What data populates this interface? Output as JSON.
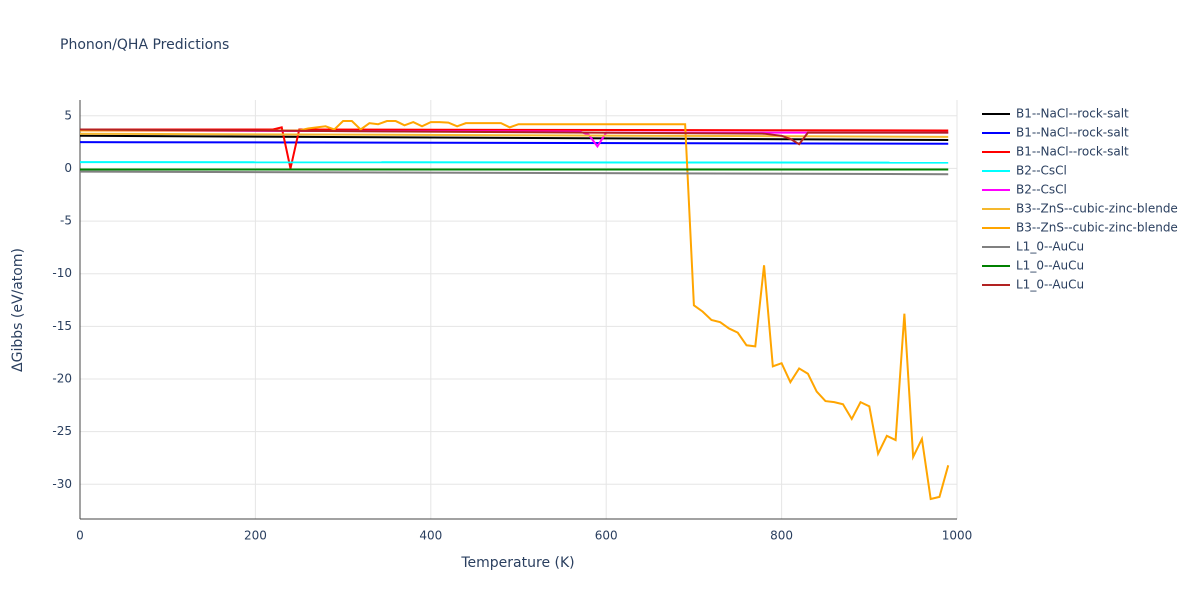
{
  "chart_data": {
    "type": "line",
    "title": "Phonon/QHA Predictions",
    "x_label": "Temperature (K)",
    "y_label": "ΔGibbs (eV/atom)",
    "xlim": [
      0,
      1000
    ],
    "ylim": [
      -33.3,
      6.5
    ],
    "xticks": [
      0,
      200,
      400,
      600,
      800,
      1000
    ],
    "yticks": [
      -30,
      -25,
      -20,
      -15,
      -10,
      -5,
      0,
      5
    ],
    "grid": true,
    "legend": "right",
    "series": [
      {
        "name": "B1--NaCl--rock-salt",
        "color": "#000000",
        "x": [
          0,
          990
        ],
        "values": [
          3.1,
          2.7
        ]
      },
      {
        "name": "B1--NaCl--rock-salt",
        "color": "#0000ff",
        "x": [
          0,
          990
        ],
        "values": [
          2.5,
          2.35
        ]
      },
      {
        "name": "B1--NaCl--rock-salt",
        "color": "#ff0000",
        "x": [
          0,
          220,
          230,
          240,
          250,
          990
        ],
        "values": [
          3.7,
          3.7,
          3.9,
          0,
          3.7,
          3.6
        ]
      },
      {
        "name": "B2--CsCl",
        "color": "#00ffff",
        "x": [
          0,
          990
        ],
        "values": [
          0.6,
          0.55
        ]
      },
      {
        "name": "B2--CsCl",
        "color": "#ff00ff",
        "x": [
          0,
          570,
          580,
          590,
          600,
          990
        ],
        "values": [
          3.6,
          3.5,
          3.2,
          2.1,
          3.4,
          3.4
        ]
      },
      {
        "name": "B3--ZnS--cubic-zinc-blende",
        "color": "#f5b82e",
        "x": [
          0,
          990
        ],
        "values": [
          3.3,
          3.0
        ]
      },
      {
        "name": "B3--ZnS--cubic-zinc-blende",
        "color": "#ffa500",
        "x": [
          0,
          250,
          260,
          270,
          280,
          290,
          300,
          310,
          320,
          330,
          340,
          350,
          360,
          370,
          380,
          390,
          400,
          410,
          420,
          430,
          440,
          450,
          460,
          470,
          480,
          490,
          500,
          690,
          700,
          710,
          720,
          730,
          740,
          750,
          760,
          770,
          780,
          790,
          800,
          810,
          820,
          830,
          840,
          850,
          860,
          870,
          880,
          890,
          900,
          910,
          920,
          930,
          940,
          950,
          960,
          970,
          980,
          990
        ],
        "values": [
          3.6,
          3.6,
          3.8,
          3.9,
          4.0,
          3.7,
          4.5,
          4.5,
          3.7,
          4.3,
          4.2,
          4.5,
          4.5,
          4.1,
          4.4,
          4.0,
          4.4,
          4.4,
          4.35,
          4.0,
          4.3,
          4.3,
          4.3,
          4.3,
          4.3,
          3.9,
          4.2,
          4.2,
          -13.0,
          -13.6,
          -14.4,
          -14.6,
          -15.2,
          -15.6,
          -16.8,
          -16.9,
          -9.2,
          -18.8,
          -18.5,
          -20.3,
          -19.0,
          -19.5,
          -21.2,
          -22.1,
          -22.2,
          -22.4,
          -23.8,
          -22.2,
          -22.6,
          -27.1,
          -25.4,
          -25.8,
          -13.8,
          -27.4,
          -25.7,
          -31.4,
          -31.2,
          -28.2
        ]
      },
      {
        "name": "L1_0--AuCu",
        "color": "#808080",
        "x": [
          0,
          990
        ],
        "values": [
          -0.3,
          -0.55
        ]
      },
      {
        "name": "L1_0--AuCu",
        "color": "#008000",
        "x": [
          0,
          990
        ],
        "values": [
          -0.1,
          -0.1
        ]
      },
      {
        "name": "L1_0--AuCu",
        "color": "#b22222",
        "x": [
          0,
          780,
          800,
          810,
          820,
          830,
          990
        ],
        "values": [
          3.7,
          3.3,
          3.1,
          2.8,
          2.3,
          3.4,
          3.4
        ]
      }
    ]
  }
}
